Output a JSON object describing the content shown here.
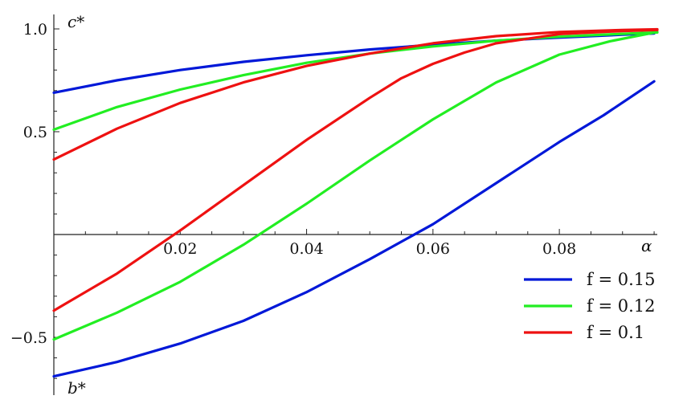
{
  "chart_data": {
    "type": "line",
    "xlabel": "α",
    "ylabel_top": "c*",
    "ylabel_bottom": "b*",
    "xlim": [
      0,
      0.0955
    ],
    "ylim": [
      -0.72,
      1.06
    ],
    "x_ticks": [
      {
        "value": 0.02,
        "label": "0.02"
      },
      {
        "value": 0.04,
        "label": "0.04"
      },
      {
        "value": 0.06,
        "label": "0.06"
      },
      {
        "value": 0.08,
        "label": "0.08"
      }
    ],
    "y_ticks": [
      {
        "value": 1.0,
        "label": "1.0"
      },
      {
        "value": 0.5,
        "label": "0.5"
      },
      {
        "value": -0.5,
        "label": "−0.5"
      }
    ],
    "legend_position": "bottom-right",
    "series": [
      {
        "name": "f = 0.15",
        "color": "#0018d8",
        "upper_x": [
          0,
          0.01,
          0.02,
          0.03,
          0.04,
          0.05,
          0.06,
          0.07,
          0.08,
          0.09,
          0.095
        ],
        "upper_y": [
          0.69,
          0.75,
          0.8,
          0.84,
          0.872,
          0.9,
          0.923,
          0.943,
          0.958,
          0.972,
          0.978
        ],
        "lower_x": [
          0,
          0.01,
          0.02,
          0.03,
          0.04,
          0.05,
          0.06,
          0.07,
          0.08,
          0.087,
          0.095
        ],
        "lower_y": [
          -0.69,
          -0.62,
          -0.53,
          -0.42,
          -0.28,
          -0.12,
          0.05,
          0.25,
          0.45,
          0.58,
          0.745
        ]
      },
      {
        "name": "f = 0.12",
        "color": "#22ee22",
        "upper_x": [
          0,
          0.01,
          0.02,
          0.03,
          0.04,
          0.05,
          0.06,
          0.07,
          0.08,
          0.09,
          0.0955
        ],
        "upper_y": [
          0.51,
          0.62,
          0.705,
          0.775,
          0.835,
          0.88,
          0.915,
          0.943,
          0.962,
          0.976,
          0.983
        ],
        "lower_x": [
          0,
          0.01,
          0.02,
          0.03,
          0.04,
          0.05,
          0.06,
          0.07,
          0.08,
          0.088,
          0.0955
        ],
        "lower_y": [
          -0.51,
          -0.38,
          -0.23,
          -0.05,
          0.15,
          0.36,
          0.56,
          0.74,
          0.875,
          0.94,
          0.985
        ]
      },
      {
        "name": "f = 0.1",
        "color": "#ee1111",
        "upper_x": [
          0,
          0.01,
          0.02,
          0.03,
          0.04,
          0.05,
          0.06,
          0.07,
          0.08,
          0.09,
          0.0955
        ],
        "upper_y": [
          0.365,
          0.515,
          0.64,
          0.74,
          0.82,
          0.88,
          0.93,
          0.965,
          0.985,
          0.995,
          0.998
        ],
        "lower_x": [
          0,
          0.01,
          0.02,
          0.03,
          0.04,
          0.05,
          0.055,
          0.06,
          0.065,
          0.07,
          0.08,
          0.09,
          0.0955
        ],
        "lower_y": [
          -0.37,
          -0.19,
          0.02,
          0.24,
          0.46,
          0.665,
          0.76,
          0.83,
          0.885,
          0.93,
          0.975,
          0.99,
          0.995
        ]
      }
    ]
  }
}
